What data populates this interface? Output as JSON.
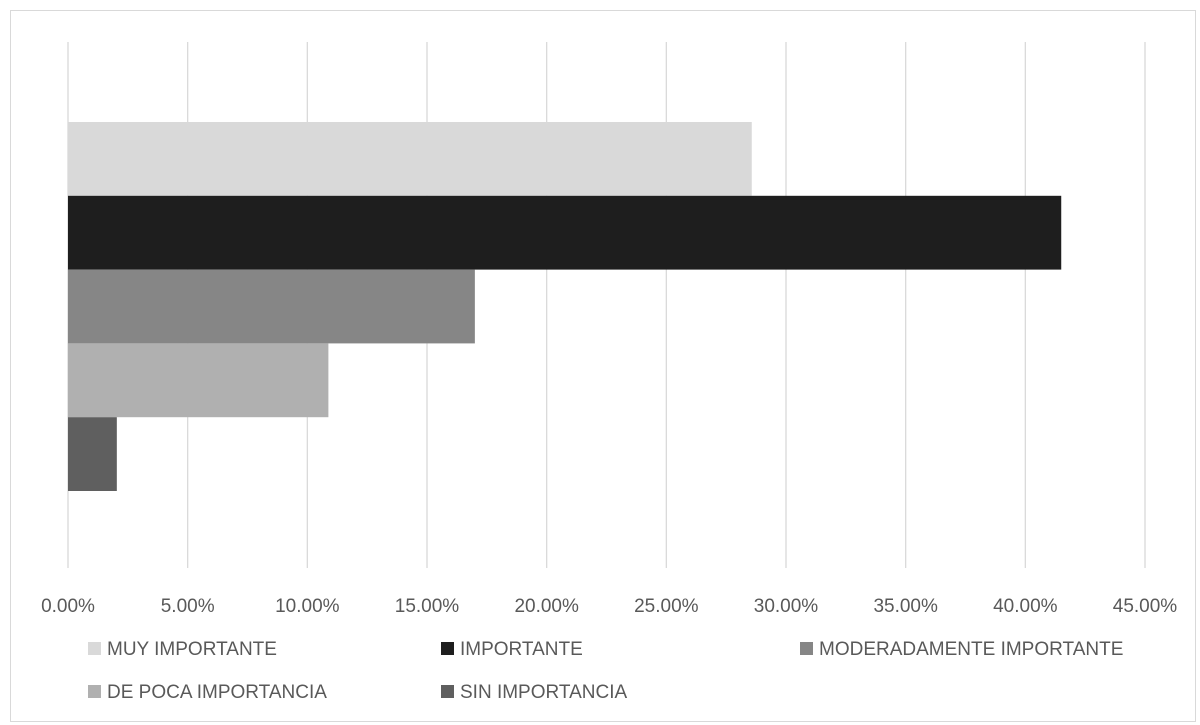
{
  "chart_data": {
    "type": "bar",
    "orientation": "horizontal",
    "title": "",
    "xlabel": "",
    "ylabel": "",
    "xlim": [
      0,
      45
    ],
    "x_ticks": [
      "0.00%",
      "5.00%",
      "10.00%",
      "15.00%",
      "20.00%",
      "25.00%",
      "30.00%",
      "35.00%",
      "40.00%",
      "45.00%"
    ],
    "grid": "vertical",
    "legend_position": "bottom",
    "series": [
      {
        "name": "MUY IMPORTANTE",
        "value": 28.57,
        "color": "#d9d9d9"
      },
      {
        "name": "IMPORTANTE",
        "value": 41.5,
        "color": "#1e1e1e"
      },
      {
        "name": "MODERADAMENTE IMPORTANTE",
        "value": 17.0,
        "color": "#868686"
      },
      {
        "name": "DE POCA IMPORTANCIA",
        "value": 10.88,
        "color": "#b0b0b0"
      },
      {
        "name": "SIN IMPORTANCIA",
        "value": 2.04,
        "color": "#5f5f5f"
      }
    ]
  }
}
